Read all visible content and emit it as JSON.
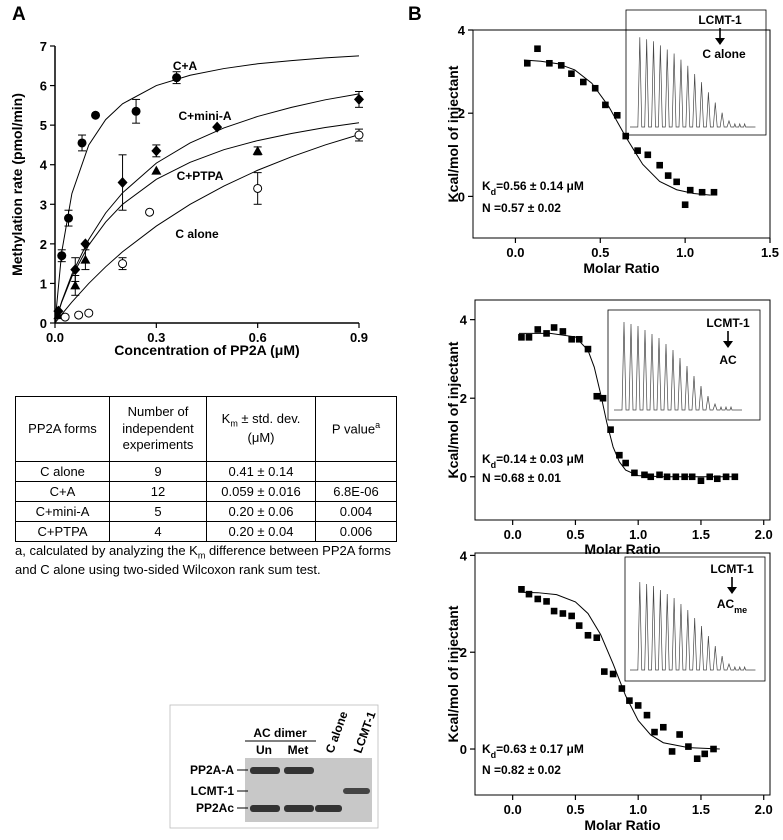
{
  "panel_labels": [
    "A",
    "B"
  ],
  "chart_data": [
    {
      "type": "scatter",
      "frame": "axes",
      "color": "#000000",
      "xlabel": "Concentration of PP2A (μM)",
      "ylabel": "Methylation rate (pmol/min)",
      "xlim": [
        0,
        0.9
      ],
      "ylim": [
        0,
        7
      ],
      "xticks": [
        {
          "value": 0,
          "label": "0.0"
        },
        0.3,
        0.6,
        0.9
      ],
      "yticks": [
        0,
        1,
        2,
        3,
        4,
        5,
        6,
        7
      ],
      "series": [
        {
          "name": "C+A",
          "marker": "circle-filled",
          "x": [
            0.02,
            0.04,
            0.08,
            0.12,
            0.24,
            0.36
          ],
          "values": [
            1.7,
            2.65,
            4.55,
            5.25,
            5.35,
            6.2
          ],
          "errors": [
            0.15,
            0.2,
            0.2,
            null,
            0.3,
            0.15
          ]
        },
        {
          "name": "C+mini-A",
          "marker": "diamond",
          "x": [
            0.01,
            0.06,
            0.09,
            0.2,
            0.3,
            0.48,
            0.9
          ],
          "values": [
            0.3,
            1.35,
            2.0,
            3.55,
            4.35,
            4.95,
            5.65
          ],
          "errors": [
            null,
            0.3,
            null,
            0.7,
            0.15,
            null,
            0.2
          ]
        },
        {
          "name": "C+PTPA",
          "marker": "triangle",
          "x": [
            0.01,
            0.06,
            0.09,
            0.3,
            0.6
          ],
          "values": [
            0.2,
            0.95,
            1.6,
            3.85,
            4.35
          ],
          "errors": [
            null,
            0.25,
            0.25,
            null,
            0.1
          ]
        },
        {
          "name": "C alone",
          "marker": "circle-open",
          "x": [
            0.03,
            0.07,
            0.1,
            0.2,
            0.28,
            0.6,
            0.9
          ],
          "values": [
            0.15,
            0.2,
            0.25,
            1.5,
            2.8,
            3.4,
            4.75
          ],
          "errors": [
            null,
            null,
            null,
            0.15,
            null,
            0.4,
            0.15
          ]
        },
        {
          "style": "line",
          "x": [
            0,
            0.02,
            0.05,
            0.1,
            0.15,
            0.2,
            0.3,
            0.4,
            0.5,
            0.6,
            0.7,
            0.8,
            0.9
          ],
          "values": [
            0,
            1.8,
            3.27,
            4.5,
            5.14,
            5.54,
            6.0,
            6.26,
            6.43,
            6.55,
            6.63,
            6.7,
            6.75
          ]
        },
        {
          "style": "line",
          "x": [
            0,
            0.02,
            0.05,
            0.1,
            0.15,
            0.2,
            0.3,
            0.4,
            0.5,
            0.6,
            0.7,
            0.8,
            0.9
          ],
          "values": [
            0,
            0.55,
            1.23,
            2.11,
            2.78,
            3.29,
            4.04,
            4.55,
            4.93,
            5.22,
            5.45,
            5.64,
            5.79
          ]
        },
        {
          "style": "line",
          "x": [
            0,
            0.02,
            0.05,
            0.1,
            0.15,
            0.2,
            0.3,
            0.4,
            0.5,
            0.6,
            0.7,
            0.8,
            0.9
          ],
          "values": [
            0,
            0.53,
            1.17,
            1.97,
            2.55,
            3.0,
            3.63,
            4.06,
            4.38,
            4.61,
            4.79,
            4.94,
            5.06
          ]
        },
        {
          "style": "line",
          "x": [
            0,
            0.02,
            0.05,
            0.1,
            0.15,
            0.2,
            0.3,
            0.4,
            0.5,
            0.6,
            0.7,
            0.8,
            0.9
          ],
          "values": [
            0,
            0.22,
            0.53,
            1.0,
            1.42,
            1.8,
            2.45,
            3.0,
            3.46,
            3.86,
            4.2,
            4.5,
            4.76
          ]
        }
      ]
    },
    {
      "type": "scatter",
      "frame": "box",
      "color": "#000000",
      "xlabel": "Molar Ratio",
      "ylabel": "Kcal/mol of injectant",
      "xlim": [
        -0.25,
        1.5
      ],
      "ylim": [
        -1,
        4
      ],
      "xticks": [
        {
          "value": 0,
          "label": "0.0"
        },
        0.5,
        {
          "value": 1,
          "label": "1.0"
        },
        1.5
      ],
      "yticks": [
        0,
        2,
        4
      ],
      "kd": [
        "K",
        "d",
        "=0.56 ± 0.14 μM"
      ],
      "n": "N =0.57 ± 0.02",
      "inset_top": "LCMT-1",
      "inset_bottom": "C alone",
      "series": [
        {
          "marker": "square",
          "x": [
            0.07,
            0.13,
            0.2,
            0.27,
            0.33,
            0.4,
            0.47,
            0.53,
            0.6,
            0.65,
            0.72,
            0.78,
            0.85,
            0.9,
            0.95,
            1.0,
            1.03,
            1.1,
            1.17
          ],
          "values": [
            3.2,
            3.55,
            3.2,
            3.15,
            2.95,
            2.75,
            2.6,
            2.2,
            1.95,
            1.45,
            1.1,
            1.0,
            0.75,
            0.5,
            0.35,
            -0.2,
            0.15,
            0.1,
            0.1
          ]
        },
        {
          "style": "line",
          "x": [
            0.05,
            0.15,
            0.25,
            0.35,
            0.45,
            0.55,
            0.65,
            0.75,
            0.85,
            0.95,
            1.05,
            1.15
          ],
          "values": [
            3.28,
            3.25,
            3.19,
            3.04,
            2.72,
            2.16,
            1.43,
            0.77,
            0.36,
            0.16,
            0.07,
            0.03
          ]
        }
      ]
    },
    {
      "type": "scatter",
      "frame": "box",
      "color": "#000000",
      "xlabel": "Molar Ratio",
      "ylabel": "Kcal/mol of injectant",
      "xlim": [
        -0.3,
        2.05
      ],
      "ylim": [
        -1.1,
        4.5
      ],
      "xticks": [
        {
          "value": 0,
          "label": "0.0"
        },
        0.5,
        {
          "value": 1,
          "label": "1.0"
        },
        1.5,
        {
          "value": 2,
          "label": "2.0"
        }
      ],
      "yticks": [
        0,
        2,
        4
      ],
      "kd": [
        "K",
        "d",
        "=0.14 ± 0.03 μM"
      ],
      "n": "N =0.68 ± 0.01",
      "inset_top": "LCMT-1",
      "inset_bottom": "AC",
      "series": [
        {
          "marker": "square",
          "x": [
            0.07,
            0.13,
            0.2,
            0.27,
            0.33,
            0.4,
            0.47,
            0.53,
            0.6,
            0.67,
            0.72,
            0.78,
            0.85,
            0.9,
            0.97,
            1.05,
            1.1,
            1.17,
            1.23,
            1.3,
            1.37,
            1.43,
            1.5,
            1.57,
            1.63,
            1.7,
            1.77
          ],
          "values": [
            3.55,
            3.55,
            3.75,
            3.65,
            3.8,
            3.7,
            3.5,
            3.5,
            3.25,
            2.05,
            2.0,
            1.2,
            0.55,
            0.35,
            0.1,
            0.05,
            0,
            0.05,
            0,
            0,
            0,
            0,
            -0.1,
            0,
            -0.05,
            0,
            0
          ]
        },
        {
          "style": "line",
          "x": [
            0.05,
            0.3,
            0.5,
            0.6,
            0.65,
            0.7,
            0.75,
            0.8,
            0.85,
            0.9,
            1.0,
            1.2,
            1.75
          ],
          "values": [
            3.65,
            3.65,
            3.56,
            3.22,
            2.79,
            2.12,
            1.38,
            0.76,
            0.38,
            0.17,
            0.03,
            0,
            0
          ]
        }
      ]
    },
    {
      "type": "scatter",
      "frame": "box",
      "color": "#000000",
      "xlabel": "Molar Ratio",
      "ylabel": "Kcal/mol of injectant",
      "xlim": [
        -0.3,
        2.05
      ],
      "ylim": [
        -0.95,
        4.05
      ],
      "xticks": [
        {
          "value": 0,
          "label": "0.0"
        },
        0.5,
        {
          "value": 1,
          "label": "1.0"
        },
        1.5,
        {
          "value": 2,
          "label": "2.0"
        }
      ],
      "yticks": [
        0,
        2,
        4
      ],
      "kd": [
        "K",
        "d",
        "=0.63 ± 0.17 μM"
      ],
      "n": "N =0.82 ± 0.02",
      "inset_top": "LCMT-1",
      "inset_bottom": "AC",
      "inset_bottom_sub": "me",
      "series": [
        {
          "marker": "square",
          "x": [
            0.07,
            0.13,
            0.2,
            0.27,
            0.33,
            0.4,
            0.47,
            0.53,
            0.6,
            0.67,
            0.73,
            0.8,
            0.87,
            0.93,
            1.0,
            1.07,
            1.13,
            1.2,
            1.27,
            1.33,
            1.4,
            1.47,
            1.53,
            1.6
          ],
          "values": [
            3.3,
            3.2,
            3.1,
            3.05,
            2.85,
            2.8,
            2.75,
            2.55,
            2.35,
            2.3,
            1.6,
            1.55,
            1.25,
            1.0,
            0.9,
            0.7,
            0.35,
            0.45,
            -0.05,
            0.3,
            0.05,
            -0.2,
            -0.1,
            0
          ]
        },
        {
          "style": "line",
          "x": [
            0.05,
            0.2,
            0.35,
            0.5,
            0.6,
            0.7,
            0.8,
            0.9,
            1.0,
            1.1,
            1.2,
            1.4,
            1.65
          ],
          "values": [
            3.24,
            3.23,
            3.19,
            3.04,
            2.8,
            2.37,
            1.76,
            1.1,
            0.59,
            0.29,
            0.13,
            0.03,
            0
          ]
        }
      ]
    }
  ],
  "table": {
    "header": [
      "PP2A forms",
      "Number of independent experiments",
      [
        "K",
        "m",
        " ± std. dev. (μM)"
      ],
      [
        "P value",
        "a"
      ]
    ],
    "rows": [
      [
        "C alone",
        "9",
        "0.41 ± 0.14"
      ],
      [
        "C+A",
        "12",
        "0.059 ± 0.016",
        "6.8E-06"
      ],
      [
        "C+mini-A",
        "5",
        "0.20 ± 0.06",
        "0.004"
      ],
      [
        "C+PTPA",
        "4",
        "0.20 ± 0.04",
        "0.006"
      ]
    ]
  },
  "footnote": [
    "a, calculated by analyzing the K",
    "m",
    " difference between PP2A forms and C alone using two-sided Wilcoxon rank sum test."
  ],
  "gel": {
    "group_label": "AC dimer",
    "lanes": [
      "Un",
      "Met",
      "C alone",
      "LCMT-1"
    ],
    "bands": [
      "PP2A-A",
      "LCMT-1",
      "PP2Ac"
    ]
  }
}
